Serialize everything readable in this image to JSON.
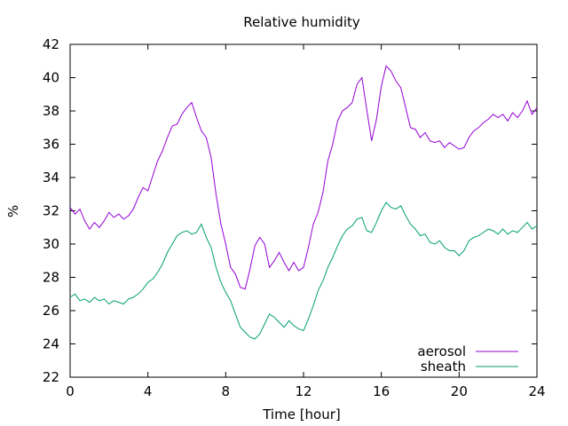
{
  "chart_data": {
    "type": "line",
    "title": "Relative humidity",
    "xlabel": "Time [hour]",
    "ylabel": "%",
    "xlim": [
      0,
      24
    ],
    "ylim": [
      22,
      42
    ],
    "xticks": [
      0,
      4,
      8,
      12,
      16,
      20,
      24
    ],
    "yticks": [
      22,
      24,
      26,
      28,
      30,
      32,
      34,
      36,
      38,
      40,
      42
    ],
    "grid": false,
    "legend_position": "bottom-right",
    "series": [
      {
        "name": "aerosol",
        "color": "#9400d3",
        "x": [
          0,
          0.25,
          0.5,
          0.75,
          1,
          1.25,
          1.5,
          1.75,
          2,
          2.25,
          2.5,
          2.75,
          3,
          3.25,
          3.5,
          3.75,
          4,
          4.25,
          4.5,
          4.75,
          5,
          5.25,
          5.5,
          5.75,
          6,
          6.25,
          6.5,
          6.75,
          7,
          7.25,
          7.5,
          7.75,
          8,
          8.25,
          8.5,
          8.75,
          9,
          9.25,
          9.5,
          9.75,
          10,
          10.25,
          10.5,
          10.75,
          11,
          11.25,
          11.5,
          11.75,
          12,
          12.25,
          12.5,
          12.75,
          13,
          13.25,
          13.5,
          13.75,
          14,
          14.25,
          14.5,
          14.75,
          15,
          15.25,
          15.5,
          15.75,
          16,
          16.25,
          16.5,
          16.75,
          17,
          17.25,
          17.5,
          17.75,
          18,
          18.25,
          18.5,
          18.75,
          19,
          19.25,
          19.5,
          19.75,
          20,
          20.25,
          20.5,
          20.75,
          21,
          21.25,
          21.5,
          21.75,
          22,
          22.25,
          22.5,
          22.75,
          23,
          23.25,
          23.5,
          23.75,
          24
        ],
        "values": [
          32.2,
          31.8,
          32.1,
          31.4,
          30.9,
          31.3,
          31.0,
          31.4,
          31.9,
          31.6,
          31.8,
          31.5,
          31.7,
          32.1,
          32.8,
          33.4,
          33.2,
          34.1,
          35.0,
          35.6,
          36.4,
          37.1,
          37.2,
          37.8,
          38.2,
          38.5,
          37.6,
          36.8,
          36.4,
          35.2,
          33.0,
          31.2,
          30.0,
          28.6,
          28.2,
          27.4,
          27.3,
          28.5,
          29.9,
          30.4,
          30.0,
          28.6,
          29.0,
          29.5,
          28.9,
          28.4,
          28.9,
          28.4,
          28.6,
          29.8,
          31.2,
          31.9,
          33.1,
          35.0,
          36.0,
          37.4,
          38.0,
          38.2,
          38.5,
          39.6,
          40.0,
          38.1,
          36.2,
          37.5,
          39.5,
          40.7,
          40.4,
          39.8,
          39.4,
          38.2,
          37.0,
          36.9,
          36.4,
          36.7,
          36.2,
          36.1,
          36.2,
          35.8,
          36.1,
          35.9,
          35.7,
          35.8,
          36.4,
          36.8,
          37.0,
          37.3,
          37.5,
          37.8,
          37.6,
          37.8,
          37.4,
          37.9,
          37.6,
          38.0,
          38.6,
          37.8,
          38.2
        ]
      },
      {
        "name": "sheath",
        "color": "#009e73",
        "x": [
          0,
          0.25,
          0.5,
          0.75,
          1,
          1.25,
          1.5,
          1.75,
          2,
          2.25,
          2.5,
          2.75,
          3,
          3.25,
          3.5,
          3.75,
          4,
          4.25,
          4.5,
          4.75,
          5,
          5.25,
          5.5,
          5.75,
          6,
          6.25,
          6.5,
          6.75,
          7,
          7.25,
          7.5,
          7.75,
          8,
          8.25,
          8.5,
          8.75,
          9,
          9.25,
          9.5,
          9.75,
          10,
          10.25,
          10.5,
          10.75,
          11,
          11.25,
          11.5,
          11.75,
          12,
          12.25,
          12.5,
          12.75,
          13,
          13.25,
          13.5,
          13.75,
          14,
          14.25,
          14.5,
          14.75,
          15,
          15.25,
          15.5,
          15.75,
          16,
          16.25,
          16.5,
          16.75,
          17,
          17.25,
          17.5,
          17.75,
          18,
          18.25,
          18.5,
          18.75,
          19,
          19.25,
          19.5,
          19.75,
          20,
          20.25,
          20.5,
          20.75,
          21,
          21.25,
          21.5,
          21.75,
          22,
          22.25,
          22.5,
          22.75,
          23,
          23.25,
          23.5,
          23.75,
          24
        ],
        "values": [
          26.8,
          27.0,
          26.6,
          26.7,
          26.5,
          26.8,
          26.6,
          26.7,
          26.4,
          26.6,
          26.5,
          26.4,
          26.7,
          26.8,
          27.0,
          27.3,
          27.7,
          27.9,
          28.3,
          28.8,
          29.5,
          30.0,
          30.5,
          30.7,
          30.8,
          30.6,
          30.7,
          31.2,
          30.4,
          29.8,
          28.6,
          27.7,
          27.1,
          26.6,
          25.8,
          25.0,
          24.7,
          24.4,
          24.3,
          24.6,
          25.2,
          25.8,
          25.6,
          25.3,
          25.0,
          25.4,
          25.1,
          24.9,
          24.8,
          25.5,
          26.3,
          27.2,
          27.8,
          28.6,
          29.2,
          29.9,
          30.5,
          30.9,
          31.1,
          31.5,
          31.6,
          30.8,
          30.7,
          31.3,
          32.0,
          32.5,
          32.2,
          32.1,
          32.3,
          31.7,
          31.2,
          30.9,
          30.5,
          30.6,
          30.1,
          30.0,
          30.2,
          29.8,
          29.6,
          29.6,
          29.3,
          29.6,
          30.2,
          30.4,
          30.5,
          30.7,
          30.9,
          30.8,
          30.6,
          30.9,
          30.6,
          30.8,
          30.7,
          31.0,
          31.3,
          30.9,
          31.1
        ]
      }
    ]
  }
}
